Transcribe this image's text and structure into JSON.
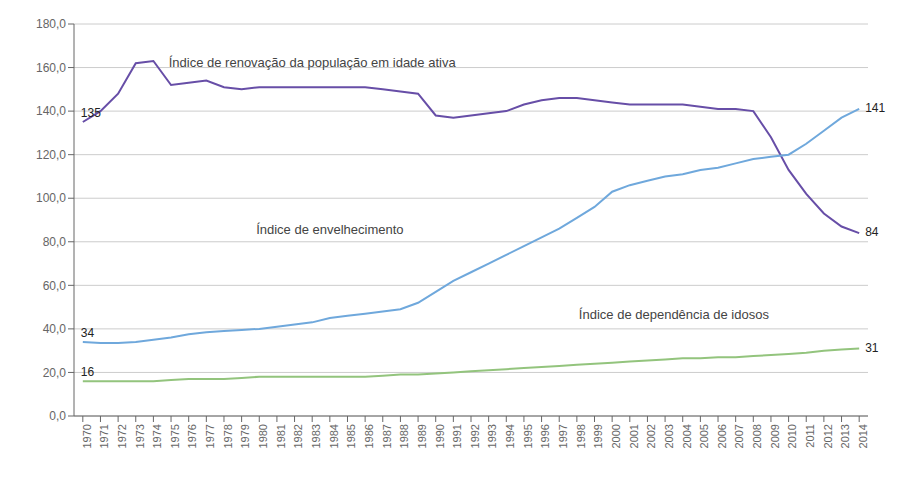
{
  "chart_data": {
    "type": "line",
    "x": [
      1970,
      1971,
      1972,
      1973,
      1974,
      1975,
      1976,
      1977,
      1978,
      1979,
      1980,
      1981,
      1982,
      1983,
      1984,
      1985,
      1986,
      1987,
      1988,
      1989,
      1990,
      1991,
      1992,
      1993,
      1994,
      1995,
      1996,
      1997,
      1998,
      1999,
      2000,
      2001,
      2002,
      2003,
      2004,
      2005,
      2006,
      2007,
      2008,
      2009,
      2010,
      2011,
      2012,
      2013,
      2014
    ],
    "series": [
      {
        "color": "#674ea7",
        "values": [
          135,
          140,
          148,
          162,
          163,
          152,
          153,
          154,
          151,
          150,
          151,
          151,
          151,
          151,
          151,
          151,
          151,
          150,
          149,
          148,
          138,
          137,
          138,
          139,
          140,
          143,
          145,
          146,
          146,
          145,
          144,
          143,
          143,
          143,
          143,
          142,
          141,
          141,
          140,
          128,
          113,
          102,
          93,
          87,
          84
        ]
      },
      {
        "color": "#6fa8dc",
        "values": [
          34,
          33.5,
          33.5,
          34,
          35,
          36,
          37.5,
          38.5,
          39,
          39.5,
          40,
          41,
          42,
          43,
          45,
          46,
          47,
          48,
          49,
          52,
          57,
          62,
          66,
          70,
          74,
          78,
          82,
          86,
          91,
          96,
          103,
          106,
          108,
          110,
          111,
          113,
          114,
          116,
          118,
          119,
          120,
          125,
          131,
          137,
          141
        ]
      },
      {
        "color": "#93c47d",
        "values": [
          16,
          16,
          16,
          16,
          16,
          16.5,
          17,
          17,
          17,
          17.5,
          18,
          18,
          18,
          18,
          18,
          18,
          18,
          18.5,
          19,
          19,
          19.5,
          20,
          20.5,
          21,
          21.5,
          22,
          22.5,
          23,
          23.5,
          24,
          24.5,
          25,
          25.5,
          26,
          26.5,
          26.5,
          27,
          27,
          27.5,
          28,
          28.5,
          29,
          30,
          30.5,
          31
        ]
      }
    ],
    "xlim": [
      1969.5,
      2014.5
    ],
    "xticks": [
      1970,
      1971,
      1972,
      1973,
      1974,
      1975,
      1976,
      1977,
      1978,
      1979,
      1980,
      1981,
      1982,
      1983,
      1984,
      1985,
      1986,
      1987,
      1988,
      1989,
      1990,
      1991,
      1992,
      1993,
      1994,
      1995,
      1996,
      1997,
      1998,
      1999,
      2000,
      2001,
      2002,
      2003,
      2004,
      2005,
      2006,
      2007,
      2008,
      2009,
      2010,
      2011,
      2012,
      2013,
      2014
    ],
    "ylim": [
      0,
      180
    ],
    "yticks": [
      {
        "value": 0,
        "label": "0,0"
      },
      {
        "value": 20,
        "label": "20,0"
      },
      {
        "value": 40,
        "label": "40,0"
      },
      {
        "value": 60,
        "label": "60,0"
      },
      {
        "value": 80,
        "label": "80,0"
      },
      {
        "value": 100,
        "label": "100,0"
      },
      {
        "value": 120,
        "label": "120,0"
      },
      {
        "value": 140,
        "label": "140,0"
      },
      {
        "value": 160,
        "label": "160,0"
      },
      {
        "value": 180,
        "label": "180,0"
      }
    ],
    "grid": "y",
    "annotations": [
      {
        "text": "135",
        "x": 1970,
        "y": 135
      },
      {
        "text": "34",
        "x": 1970,
        "y": 34
      },
      {
        "text": "16",
        "x": 1970,
        "y": 16
      },
      {
        "text": "84",
        "x": 2014,
        "y": 84
      },
      {
        "text": "141",
        "x": 2014,
        "y": 141
      },
      {
        "text": "31",
        "x": 2014,
        "y": 31
      },
      {
        "text": "Índice de envelhecimento",
        "x": 1984,
        "y": 85
      },
      {
        "text": "Índice de renovação da população em idade ativa",
        "x": 1983,
        "y": 162
      },
      {
        "text": "Índice de dependência de idosos",
        "x": 2003.5,
        "y": 46
      }
    ]
  }
}
